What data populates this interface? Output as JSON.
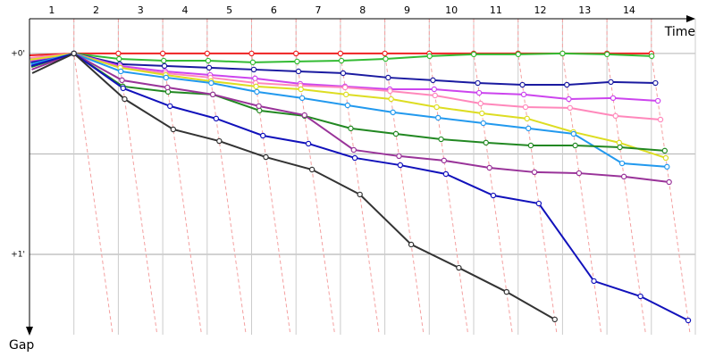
{
  "chart_data": {
    "type": "line",
    "x_label": "Time",
    "y_label": "Gap",
    "categories": [
      null,
      "1",
      "2",
      "3",
      "4",
      "5",
      "6",
      "7",
      "8",
      "9",
      "10",
      "11",
      "12",
      "13",
      "14"
    ],
    "ylim": [
      -0.173,
      1.4
    ],
    "yticks": [
      {
        "value": 0,
        "label": "+0'"
      },
      {
        "value": 0.5,
        "label": null
      },
      {
        "value": 1,
        "label": "+1'"
      }
    ],
    "grid": true,
    "series": [
      {
        "color": "#ee2222",
        "values": [
          0.009,
          0,
          0,
          0,
          0,
          0,
          0,
          0,
          0,
          0,
          0,
          0,
          0,
          0,
          0
        ]
      },
      {
        "color": "#33bb33",
        "values": [
          0.027,
          0,
          0.027,
          0.036,
          0.036,
          0.044,
          0.04,
          0.036,
          0.027,
          0.013,
          0.004,
          0.004,
          0,
          0.004,
          0.013
        ]
      },
      {
        "color": "#1a1aa0",
        "values": [
          0.044,
          0,
          0.053,
          0.062,
          0.071,
          0.08,
          0.089,
          0.098,
          0.12,
          0.133,
          0.147,
          0.156,
          0.156,
          0.142,
          0.147
        ]
      },
      {
        "color": "#cc44ee",
        "values": [
          0.036,
          0,
          0.062,
          0.089,
          0.107,
          0.124,
          0.151,
          0.164,
          0.178,
          0.178,
          0.196,
          0.204,
          0.227,
          0.222,
          0.236
        ]
      },
      {
        "color": "#ff88bb",
        "values": [
          0.022,
          0,
          0.071,
          0.098,
          0.12,
          0.147,
          0.16,
          0.169,
          0.187,
          0.209,
          0.249,
          0.267,
          0.271,
          0.311,
          0.329
        ]
      },
      {
        "color": "#dddd22",
        "values": [
          0.031,
          0,
          0.071,
          0.107,
          0.138,
          0.164,
          0.178,
          0.204,
          0.227,
          0.267,
          0.298,
          0.324,
          0.391,
          0.444,
          0.52
        ]
      },
      {
        "color": "#2299ee",
        "values": [
          0.053,
          0,
          0.089,
          0.12,
          0.147,
          0.191,
          0.222,
          0.258,
          0.293,
          0.32,
          0.347,
          0.373,
          0.4,
          0.547,
          0.564
        ]
      },
      {
        "color": "#228822",
        "values": [
          0.067,
          0,
          0.164,
          0.191,
          0.204,
          0.284,
          0.311,
          0.373,
          0.4,
          0.427,
          0.444,
          0.458,
          0.458,
          0.467,
          0.484
        ]
      },
      {
        "color": "#993399",
        "values": [
          0.08,
          0,
          0.133,
          0.169,
          0.204,
          0.262,
          0.307,
          0.48,
          0.511,
          0.533,
          0.569,
          0.591,
          0.596,
          0.613,
          0.64
        ]
      },
      {
        "color": "#1111bb",
        "values": [
          0.062,
          0,
          0.173,
          0.262,
          0.324,
          0.409,
          0.449,
          0.52,
          0.556,
          0.6,
          0.707,
          0.747,
          1.133,
          1.209,
          1.329
        ]
      },
      {
        "color": "#333333",
        "values": [
          0.098,
          0,
          0.227,
          0.378,
          0.436,
          0.516,
          0.578,
          0.702,
          0.951,
          1.067,
          1.187,
          1.324,
          null,
          null,
          null
        ]
      }
    ]
  }
}
